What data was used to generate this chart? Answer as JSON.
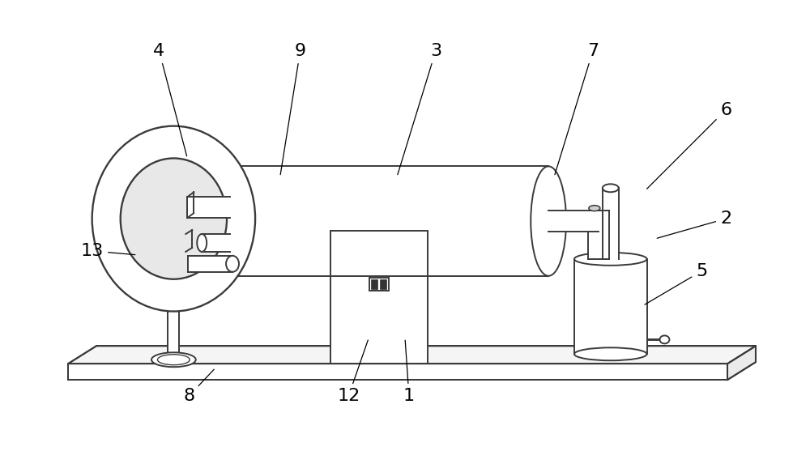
{
  "bg_color": "#ffffff",
  "lc": "#3a3a3a",
  "lw": 1.4,
  "labels": [
    [
      "4",
      195,
      62,
      230,
      195
    ],
    [
      "9",
      370,
      62,
      345,
      218
    ],
    [
      "3",
      538,
      62,
      490,
      218
    ],
    [
      "7",
      733,
      62,
      685,
      218
    ],
    [
      "6",
      898,
      135,
      798,
      235
    ],
    [
      "2",
      898,
      270,
      810,
      295
    ],
    [
      "5",
      868,
      335,
      795,
      378
    ],
    [
      "13",
      112,
      310,
      168,
      315
    ],
    [
      "8",
      232,
      490,
      265,
      455
    ],
    [
      "12",
      430,
      490,
      455,
      418
    ],
    [
      "1",
      505,
      490,
      500,
      418
    ]
  ]
}
